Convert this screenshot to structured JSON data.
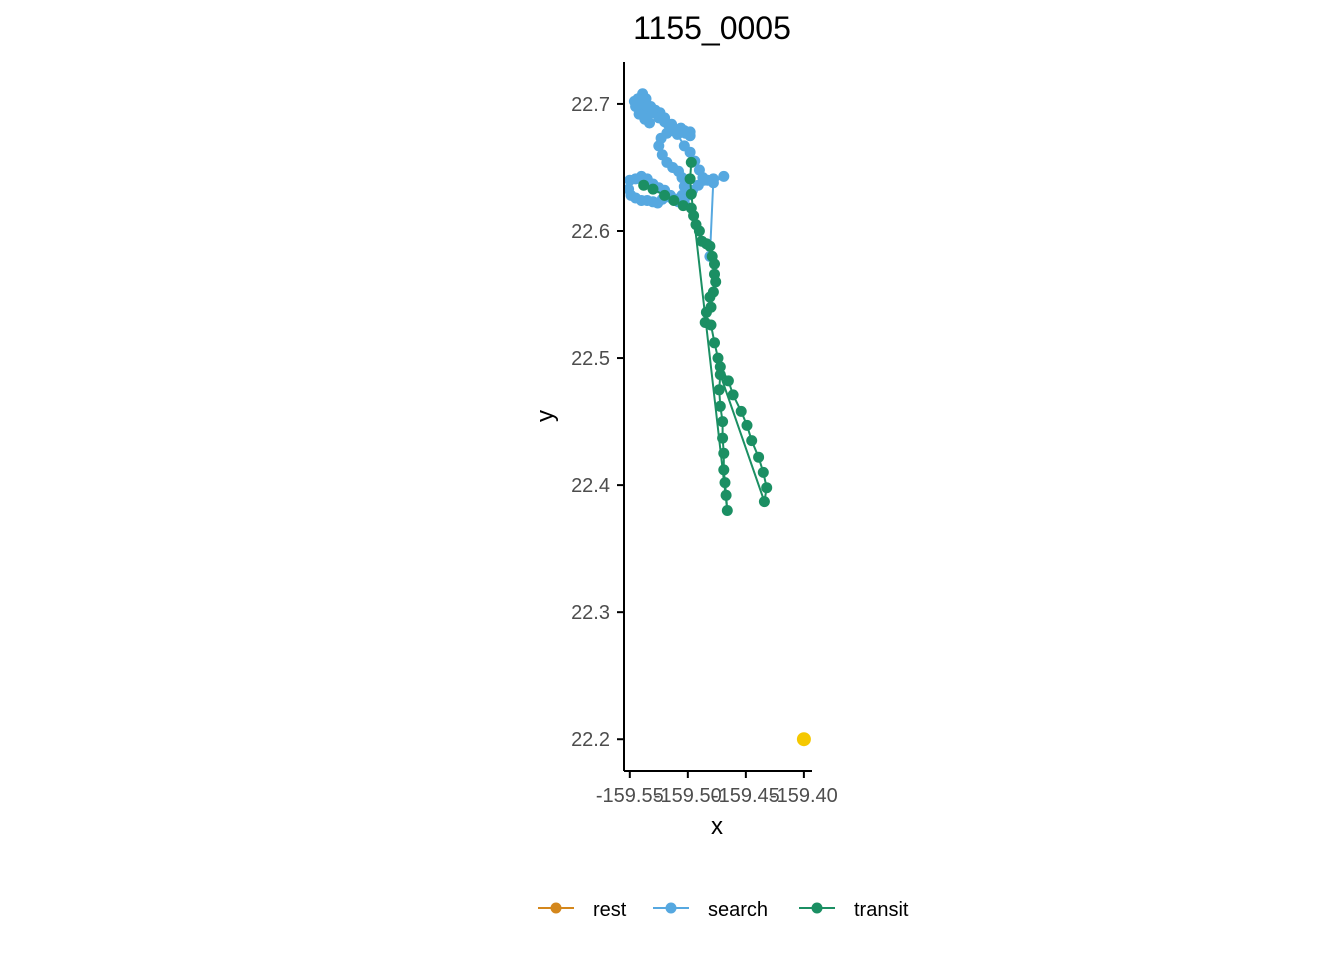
{
  "chart_data": {
    "type": "scatter",
    "title": "1155_0005",
    "xlabel": "x",
    "ylabel": "y",
    "xlim": [
      -159.555,
      -159.393
    ],
    "ylim": [
      22.175,
      22.733
    ],
    "x_ticks": [
      -159.55,
      -159.5,
      -159.45,
      -159.4
    ],
    "x_tick_labels": [
      "-159.55",
      "-159.50",
      "-159.45",
      "-159.40"
    ],
    "y_ticks": [
      22.2,
      22.3,
      22.4,
      22.5,
      22.6,
      22.7
    ],
    "y_tick_labels": [
      "22.2",
      "22.3",
      "22.4",
      "22.5",
      "22.6",
      "22.7"
    ],
    "grid": false,
    "legend_position": "bottom",
    "colors": {
      "rest": "#D4871C",
      "search": "#56A8E0",
      "transit": "#1B8F63",
      "marker": "#F5C800",
      "axis": "#000000"
    },
    "series": [
      {
        "name": "search",
        "points": [
          [
            -159.469,
            22.643
          ],
          [
            -159.478,
            22.638
          ],
          [
            -159.486,
            22.64
          ],
          [
            -159.491,
            22.636
          ],
          [
            -159.496,
            22.632
          ],
          [
            -159.5,
            22.628
          ],
          [
            -159.503,
            22.622
          ],
          [
            -159.508,
            22.623
          ],
          [
            -159.513,
            22.625
          ],
          [
            -159.518,
            22.627
          ],
          [
            -159.522,
            22.625
          ],
          [
            -159.526,
            22.622
          ],
          [
            -159.53,
            22.623
          ],
          [
            -159.535,
            22.624
          ],
          [
            -159.54,
            22.624
          ],
          [
            -159.545,
            22.626
          ],
          [
            -159.549,
            22.628
          ],
          [
            -159.551,
            22.633
          ],
          [
            -159.55,
            22.64
          ],
          [
            -159.545,
            22.641
          ],
          [
            -159.54,
            22.643
          ],
          [
            -159.535,
            22.641
          ],
          [
            -159.53,
            22.637
          ],
          [
            -159.525,
            22.634
          ],
          [
            -159.52,
            22.632
          ],
          [
            -159.515,
            22.628
          ],
          [
            -159.51,
            22.625
          ],
          [
            -159.505,
            22.628
          ],
          [
            -159.503,
            22.635
          ],
          [
            -159.505,
            22.642
          ],
          [
            -159.508,
            22.647
          ],
          [
            -159.513,
            22.65
          ],
          [
            -159.518,
            22.654
          ],
          [
            -159.522,
            22.66
          ],
          [
            -159.525,
            22.667
          ],
          [
            -159.523,
            22.673
          ],
          [
            -159.518,
            22.677
          ],
          [
            -159.512,
            22.68
          ],
          [
            -159.506,
            22.681
          ],
          [
            -159.502,
            22.677
          ],
          [
            -159.498,
            22.675
          ],
          [
            -159.498,
            22.678
          ],
          [
            -159.503,
            22.679
          ],
          [
            -159.508,
            22.677
          ],
          [
            -159.513,
            22.679
          ],
          [
            -159.517,
            22.684
          ],
          [
            -159.52,
            22.689
          ],
          [
            -159.524,
            22.693
          ],
          [
            -159.528,
            22.695
          ],
          [
            -159.532,
            22.698
          ],
          [
            -159.536,
            22.704
          ],
          [
            -159.539,
            22.708
          ],
          [
            -159.543,
            22.703
          ],
          [
            -159.545,
            22.698
          ],
          [
            -159.542,
            22.692
          ],
          [
            -159.537,
            22.688
          ],
          [
            -159.533,
            22.685
          ],
          [
            -159.535,
            22.69
          ],
          [
            -159.54,
            22.694
          ],
          [
            -159.544,
            22.699
          ],
          [
            -159.546,
            22.702
          ],
          [
            -159.543,
            22.704
          ],
          [
            -159.539,
            22.701
          ],
          [
            -159.535,
            22.698
          ],
          [
            -159.53,
            22.693
          ],
          [
            -159.525,
            22.689
          ],
          [
            -159.52,
            22.686
          ],
          [
            -159.514,
            22.684
          ],
          [
            -159.509,
            22.676
          ],
          [
            -159.503,
            22.667
          ],
          [
            -159.498,
            22.662
          ],
          [
            -159.494,
            22.655
          ],
          [
            -159.49,
            22.648
          ],
          [
            -159.487,
            22.642
          ],
          [
            -159.483,
            22.64
          ],
          [
            -159.478,
            22.641
          ],
          [
            -159.481,
            22.58
          ]
        ]
      },
      {
        "name": "transit",
        "points": [
          [
            -159.538,
            22.636
          ],
          [
            -159.53,
            22.633
          ],
          [
            -159.52,
            22.628
          ],
          [
            -159.512,
            22.624
          ],
          [
            -159.504,
            22.62
          ],
          [
            -159.497,
            22.618
          ],
          [
            -159.495,
            22.612
          ],
          [
            -159.493,
            22.605
          ],
          [
            -159.49,
            22.6
          ],
          [
            -159.488,
            22.592
          ],
          [
            -159.484,
            22.59
          ],
          [
            -159.481,
            22.588
          ],
          [
            -159.479,
            22.58
          ],
          [
            -159.477,
            22.574
          ],
          [
            -159.477,
            22.566
          ],
          [
            -159.476,
            22.56
          ],
          [
            -159.478,
            22.552
          ],
          [
            -159.481,
            22.548
          ],
          [
            -159.48,
            22.54
          ],
          [
            -159.484,
            22.536
          ],
          [
            -159.485,
            22.528
          ],
          [
            -159.48,
            22.526
          ],
          [
            -159.477,
            22.512
          ],
          [
            -159.474,
            22.5
          ],
          [
            -159.472,
            22.493
          ],
          [
            -159.465,
            22.482
          ],
          [
            -159.461,
            22.471
          ],
          [
            -159.454,
            22.458
          ],
          [
            -159.449,
            22.447
          ],
          [
            -159.445,
            22.435
          ],
          [
            -159.439,
            22.422
          ],
          [
            -159.435,
            22.41
          ],
          [
            -159.432,
            22.398
          ],
          [
            -159.434,
            22.387
          ],
          [
            -159.472,
            22.487
          ],
          [
            -159.473,
            22.475
          ],
          [
            -159.472,
            22.462
          ],
          [
            -159.47,
            22.45
          ],
          [
            -159.47,
            22.437
          ],
          [
            -159.469,
            22.425
          ],
          [
            -159.469,
            22.412
          ],
          [
            -159.468,
            22.402
          ],
          [
            -159.467,
            22.392
          ],
          [
            -159.466,
            22.38
          ],
          [
            -159.497,
            22.629
          ],
          [
            -159.498,
            22.641
          ],
          [
            -159.497,
            22.654
          ]
        ]
      },
      {
        "name": "marker",
        "points": [
          [
            -159.4,
            22.2
          ]
        ]
      }
    ]
  },
  "legend": {
    "items": [
      {
        "label": "rest",
        "key": "rest"
      },
      {
        "label": "search",
        "key": "search"
      },
      {
        "label": "transit",
        "key": "transit"
      }
    ]
  }
}
